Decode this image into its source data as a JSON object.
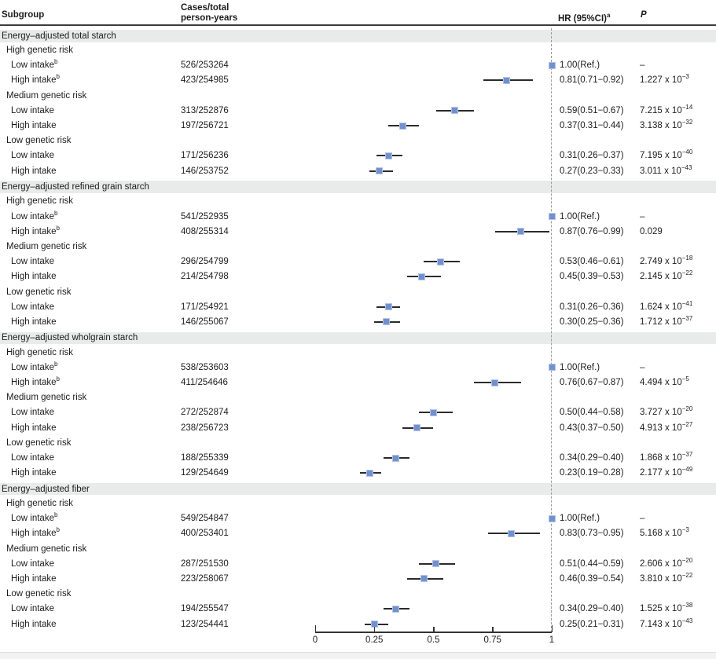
{
  "colors": {
    "marker": "#7191ce",
    "marker_edge": "#b6c4e4",
    "ci_line": "#2b2b2b",
    "band": "#e9ebea",
    "dashed_refline": "#9a9a9a"
  },
  "columns": {
    "subgroup": "Subgroup",
    "cases_line1": "Cases/total",
    "cases_line2": "person-years",
    "hr": "HR (95%CI)",
    "hr_sup": "a",
    "p": "P"
  },
  "chart_data": {
    "type": "forest",
    "xlabel": "",
    "refline": 1.0,
    "axis": {
      "min": 0,
      "max": 1,
      "ticks": [
        {
          "v": 0,
          "label": "0"
        },
        {
          "v": 0.25,
          "label": "0.25"
        },
        {
          "v": 0.5,
          "label": "0.5"
        },
        {
          "v": 0.75,
          "label": "0.75"
        },
        {
          "v": 1,
          "label": "1"
        }
      ]
    },
    "sections": [
      {
        "label": "Energy–adjusted total starch",
        "groups": [
          {
            "label": "High genetic risk",
            "rows": [
              {
                "label": "Low intake",
                "sup": "b",
                "cases": "526/253264",
                "hr": 1.0,
                "lo": null,
                "hi": null,
                "hr_text": "1.00(Ref.)",
                "p_base": "–",
                "p_exp": ""
              },
              {
                "label": "High intake",
                "sup": "b",
                "cases": "423/254985",
                "hr": 0.81,
                "lo": 0.71,
                "hi": 0.92,
                "hr_text": "0.81(0.71−0.92)",
                "p_base": "1.227 x 10",
                "p_exp": "−3"
              }
            ]
          },
          {
            "label": "Medium genetic risk",
            "rows": [
              {
                "label": "Low intake",
                "sup": "",
                "cases": "313/252876",
                "hr": 0.59,
                "lo": 0.51,
                "hi": 0.67,
                "hr_text": "0.59(0.51−0.67)",
                "p_base": "7.215 x 10",
                "p_exp": "−14"
              },
              {
                "label": "High intake",
                "sup": "",
                "cases": "197/256721",
                "hr": 0.37,
                "lo": 0.31,
                "hi": 0.44,
                "hr_text": "0.37(0.31−0.44)",
                "p_base": "3.138 x 10",
                "p_exp": "−32"
              }
            ]
          },
          {
            "label": "Low genetic risk",
            "rows": [
              {
                "label": "Low intake",
                "sup": "",
                "cases": "171/256236",
                "hr": 0.31,
                "lo": 0.26,
                "hi": 0.37,
                "hr_text": "0.31(0.26−0.37)",
                "p_base": "7.195 x 10",
                "p_exp": "−40"
              },
              {
                "label": "High intake",
                "sup": "",
                "cases": "146/253752",
                "hr": 0.27,
                "lo": 0.23,
                "hi": 0.33,
                "hr_text": "0.27(0.23−0.33)",
                "p_base": "3.011 x 10",
                "p_exp": "−43"
              }
            ]
          }
        ]
      },
      {
        "label": "Energy–adjusted refined grain starch",
        "groups": [
          {
            "label": "High genetic risk",
            "rows": [
              {
                "label": "Low intake",
                "sup": "b",
                "cases": "541/252935",
                "hr": 1.0,
                "lo": null,
                "hi": null,
                "hr_text": "1.00(Ref.)",
                "p_base": "–",
                "p_exp": ""
              },
              {
                "label": "High intake",
                "sup": "b",
                "cases": "408/255314",
                "hr": 0.87,
                "lo": 0.76,
                "hi": 0.99,
                "hr_text": "0.87(0.76−0.99)",
                "p_base": "0.029",
                "p_exp": ""
              }
            ]
          },
          {
            "label": "Medium genetic risk",
            "rows": [
              {
                "label": "Low intake",
                "sup": "",
                "cases": "296/254799",
                "hr": 0.53,
                "lo": 0.46,
                "hi": 0.61,
                "hr_text": "0.53(0.46−0.61)",
                "p_base": "2.749 x 10",
                "p_exp": "−18"
              },
              {
                "label": "High intake",
                "sup": "",
                "cases": "214/254798",
                "hr": 0.45,
                "lo": 0.39,
                "hi": 0.53,
                "hr_text": "0.45(0.39−0.53)",
                "p_base": "2.145 x 10",
                "p_exp": "−22"
              }
            ]
          },
          {
            "label": "Low genetic risk",
            "rows": [
              {
                "label": "Low intake",
                "sup": "",
                "cases": "171/254921",
                "hr": 0.31,
                "lo": 0.26,
                "hi": 0.36,
                "hr_text": "0.31(0.26−0.36)",
                "p_base": "1.624 x 10",
                "p_exp": "−41"
              },
              {
                "label": "High intake",
                "sup": "",
                "cases": "146/255067",
                "hr": 0.3,
                "lo": 0.25,
                "hi": 0.36,
                "hr_text": "0.30(0.25−0.36)",
                "p_base": "1.712 x 10",
                "p_exp": "−37"
              }
            ]
          }
        ]
      },
      {
        "label": "Energy–adjusted wholgrain starch",
        "groups": [
          {
            "label": "High genetic risk",
            "rows": [
              {
                "label": "Low intake",
                "sup": "b",
                "cases": "538/253603",
                "hr": 1.0,
                "lo": null,
                "hi": null,
                "hr_text": "1.00(Ref.)",
                "p_base": "–",
                "p_exp": ""
              },
              {
                "label": "High intake",
                "sup": "b",
                "cases": "411/254646",
                "hr": 0.76,
                "lo": 0.67,
                "hi": 0.87,
                "hr_text": "0.76(0.67−0.87)",
                "p_base": "4.494 x 10",
                "p_exp": "−5"
              }
            ]
          },
          {
            "label": "Medium genetic risk",
            "rows": [
              {
                "label": "Low intake",
                "sup": "",
                "cases": "272/252874",
                "hr": 0.5,
                "lo": 0.44,
                "hi": 0.58,
                "hr_text": "0.50(0.44−0.58)",
                "p_base": "3.727 x 10",
                "p_exp": "−20"
              },
              {
                "label": "High intake",
                "sup": "",
                "cases": "238/256723",
                "hr": 0.43,
                "lo": 0.37,
                "hi": 0.5,
                "hr_text": "0.43(0.37−0.50)",
                "p_base": "4.913 x 10",
                "p_exp": "−27"
              }
            ]
          },
          {
            "label": "Low genetic risk",
            "rows": [
              {
                "label": "Low intake",
                "sup": "",
                "cases": "188/255339",
                "hr": 0.34,
                "lo": 0.29,
                "hi": 0.4,
                "hr_text": "0.34(0.29−0.40)",
                "p_base": "1.868 x 10",
                "p_exp": "−37"
              },
              {
                "label": "High intake",
                "sup": "",
                "cases": "129/254649",
                "hr": 0.23,
                "lo": 0.19,
                "hi": 0.28,
                "hr_text": "0.23(0.19−0.28)",
                "p_base": "2.177 x 10",
                "p_exp": "−49"
              }
            ]
          }
        ]
      },
      {
        "label": "Energy–adjusted fiber",
        "groups": [
          {
            "label": "High genetic risk",
            "rows": [
              {
                "label": "Low intake",
                "sup": "b",
                "cases": "549/254847",
                "hr": 1.0,
                "lo": null,
                "hi": null,
                "hr_text": "1.00(Ref.)",
                "p_base": "–",
                "p_exp": ""
              },
              {
                "label": "High intake",
                "sup": "b",
                "cases": "400/253401",
                "hr": 0.83,
                "lo": 0.73,
                "hi": 0.95,
                "hr_text": "0.83(0.73−0.95)",
                "p_base": "5.168 x 10",
                "p_exp": "−3"
              }
            ]
          },
          {
            "label": "Medium genetic risk",
            "rows": [
              {
                "label": "Low intake",
                "sup": "",
                "cases": "287/251530",
                "hr": 0.51,
                "lo": 0.44,
                "hi": 0.59,
                "hr_text": "0.51(0.44−0.59)",
                "p_base": "2.606 x 10",
                "p_exp": "−20"
              },
              {
                "label": "High intake",
                "sup": "",
                "cases": "223/258067",
                "hr": 0.46,
                "lo": 0.39,
                "hi": 0.54,
                "hr_text": "0.46(0.39−0.54)",
                "p_base": "3.810 x 10",
                "p_exp": "−22"
              }
            ]
          },
          {
            "label": "Low genetic risk",
            "rows": [
              {
                "label": "Low intake",
                "sup": "",
                "cases": "194/255547",
                "hr": 0.34,
                "lo": 0.29,
                "hi": 0.4,
                "hr_text": "0.34(0.29−0.40)",
                "p_base": "1.525 x 10",
                "p_exp": "−38"
              },
              {
                "label": "High intake",
                "sup": "",
                "cases": "123/254441",
                "hr": 0.25,
                "lo": 0.21,
                "hi": 0.31,
                "hr_text": "0.25(0.21−0.31)",
                "p_base": "7.143 x 10",
                "p_exp": "−43"
              }
            ]
          }
        ]
      }
    ]
  }
}
